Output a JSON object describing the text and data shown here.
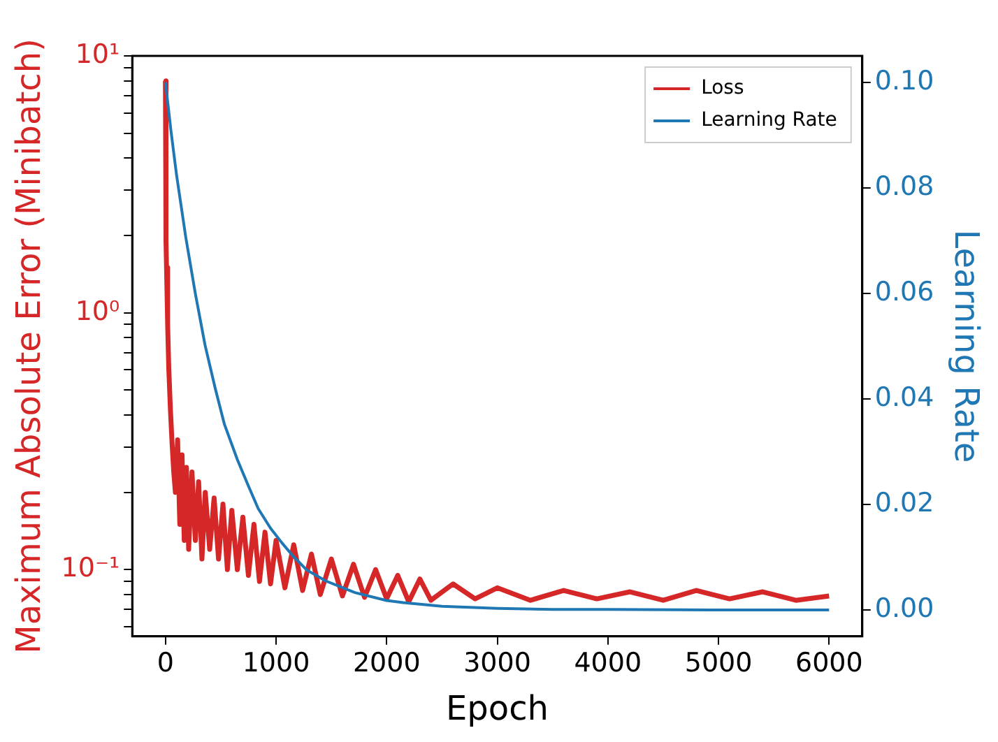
{
  "chart_data": {
    "type": "line",
    "xlabel": "Epoch",
    "ylabel": "Maximum Absolute Error (Minibatch)",
    "y2label": "Learning Rate",
    "legend": "top right",
    "log": "y",
    "grid": false,
    "marker": "none",
    "line_style": "solid",
    "xlim": [
      -300,
      6300
    ],
    "xticks": [
      0,
      1000,
      2000,
      3000,
      4000,
      5000,
      6000
    ],
    "ylim": [
      0.055,
      10
    ],
    "yticks": [
      {
        "value": 0.06,
        "label": null
      },
      {
        "value": 0.07,
        "label": null
      },
      {
        "value": 0.08,
        "label": null
      },
      {
        "value": 0.09,
        "label": null
      },
      {
        "value": 0.1,
        "label": "10⁻¹"
      },
      {
        "value": 0.2,
        "label": null
      },
      {
        "value": 0.3,
        "label": null
      },
      {
        "value": 0.4,
        "label": null
      },
      {
        "value": 0.5,
        "label": null
      },
      {
        "value": 0.6,
        "label": null
      },
      {
        "value": 0.7,
        "label": null
      },
      {
        "value": 0.8,
        "label": null
      },
      {
        "value": 0.9,
        "label": null
      },
      {
        "value": 1,
        "label": "10⁰"
      },
      {
        "value": 2,
        "label": null
      },
      {
        "value": 3,
        "label": null
      },
      {
        "value": 4,
        "label": null
      },
      {
        "value": 5,
        "label": null
      },
      {
        "value": 6,
        "label": null
      },
      {
        "value": 7,
        "label": null
      },
      {
        "value": 8,
        "label": null
      },
      {
        "value": 9,
        "label": null
      },
      {
        "value": 10,
        "label": "10¹"
      }
    ],
    "y2lim": [
      -0.005,
      0.105
    ],
    "y2ticks": [
      {
        "value": 0,
        "label": "0.00"
      },
      {
        "value": 0.02,
        "label": "0.02"
      },
      {
        "value": 0.04,
        "label": "0.04"
      },
      {
        "value": 0.06,
        "label": "0.06"
      },
      {
        "value": 0.08,
        "label": "0.08"
      },
      {
        "value": 0.1,
        "label": "0.10"
      }
    ],
    "series": [
      {
        "name": "Loss",
        "color": "#d62728",
        "x": [
          0,
          5,
          10,
          20,
          30,
          45,
          60,
          75,
          90,
          110,
          130,
          150,
          170,
          190,
          210,
          240,
          270,
          300,
          330,
          360,
          400,
          440,
          480,
          520,
          560,
          600,
          650,
          700,
          750,
          800,
          850,
          900,
          950,
          1000,
          1080,
          1160,
          1240,
          1320,
          1400,
          1500,
          1600,
          1700,
          1800,
          1900,
          2000,
          2100,
          2200,
          2300,
          2400,
          2600,
          2800,
          3000,
          3300,
          3600,
          3900,
          4200,
          4500,
          4800,
          5100,
          5400,
          5700,
          6000
        ],
        "values": [
          8.0,
          1.9,
          1.5,
          0.9,
          0.61,
          0.42,
          0.31,
          0.24,
          0.2,
          0.32,
          0.15,
          0.28,
          0.13,
          0.25,
          0.12,
          0.24,
          0.13,
          0.22,
          0.11,
          0.2,
          0.12,
          0.19,
          0.11,
          0.18,
          0.1,
          0.17,
          0.1,
          0.16,
          0.095,
          0.15,
          0.09,
          0.14,
          0.088,
          0.13,
          0.085,
          0.125,
          0.083,
          0.115,
          0.08,
          0.11,
          0.079,
          0.105,
          0.078,
          0.1,
          0.077,
          0.095,
          0.075,
          0.092,
          0.076,
          0.088,
          0.077,
          0.085,
          0.076,
          0.083,
          0.077,
          0.082,
          0.076,
          0.083,
          0.077,
          0.082,
          0.076,
          0.079
        ]
      },
      {
        "name": "Learning Rate",
        "color": "#1f77b4",
        "axis": "y2",
        "x": [
          0,
          50,
          100,
          184,
          270,
          358,
          450,
          533,
          650,
          750,
          839,
          950,
          1050,
          1150,
          1276,
          1450,
          1713,
          2000,
          2150,
          2500,
          3000,
          3500,
          4000,
          5000,
          6000
        ],
        "values": [
          0.1,
          0.0908,
          0.0825,
          0.0706,
          0.06,
          0.0502,
          0.042,
          0.0352,
          0.0285,
          0.0235,
          0.0192,
          0.0155,
          0.0128,
          0.0103,
          0.0076,
          0.0055,
          0.0033,
          0.0018,
          0.0014,
          0.0007,
          0.0003,
          0.0001,
          0.0001,
          0.0,
          0.0
        ]
      }
    ]
  }
}
